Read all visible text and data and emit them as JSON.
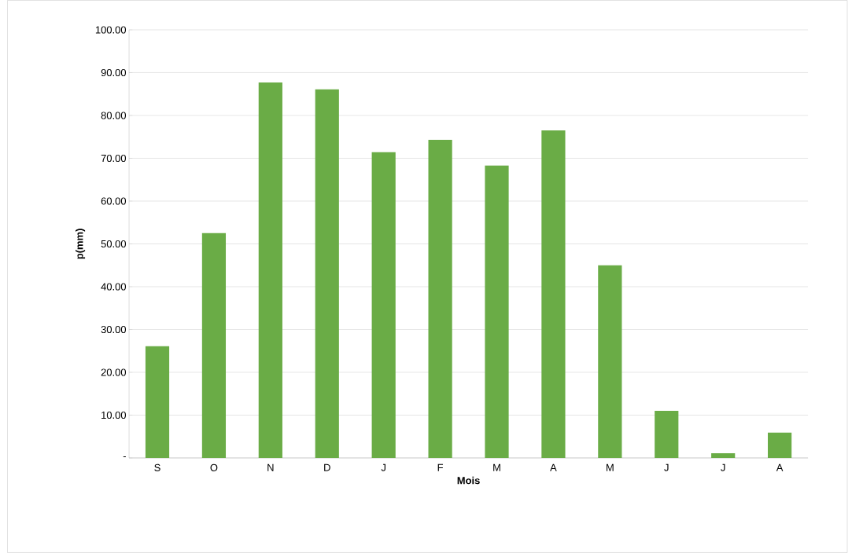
{
  "chart_data": {
    "type": "bar",
    "xlabel": "Mois",
    "ylabel": "p(mm)",
    "categories": [
      "S",
      "O",
      "N",
      "D",
      "J",
      "F",
      "M",
      "A",
      "M",
      "J",
      "J",
      "A"
    ],
    "values": [
      26.1,
      52.5,
      87.7,
      86.1,
      71.4,
      74.3,
      68.3,
      76.5,
      45.0,
      11.0,
      1.1,
      5.9
    ],
    "color": "#6aac46",
    "ylim": [
      0,
      100
    ],
    "yticks": [
      {
        "value": 0,
        "label": "-"
      },
      {
        "value": 10,
        "label": "10.00"
      },
      {
        "value": 20,
        "label": "20.00"
      },
      {
        "value": 30,
        "label": "30.00"
      },
      {
        "value": 40,
        "label": "40.00"
      },
      {
        "value": 50,
        "label": "50.00"
      },
      {
        "value": 60,
        "label": "60.00"
      },
      {
        "value": 70,
        "label": "70.00"
      },
      {
        "value": 80,
        "label": "80.00"
      },
      {
        "value": 90,
        "label": "90.00"
      },
      {
        "value": 100,
        "label": "100.00"
      }
    ],
    "grid": "y"
  }
}
